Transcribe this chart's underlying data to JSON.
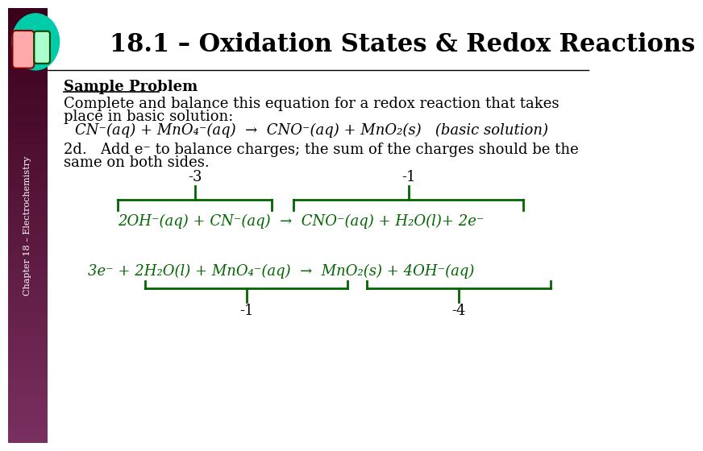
{
  "title": "18.1 – Oxidation States & Redox Reactions",
  "title_fontsize": 22,
  "title_color": "#000000",
  "bg_color": "#ffffff",
  "sidebar_text": "Chapter 18 – Electrochemistry",
  "sidebar_color_top": "#3a001a",
  "sidebar_color_bot": "#7a3060",
  "green_color": "#006600",
  "cyan_bg": "#00ccaa",
  "body_fontsize": 13,
  "sample_problem_text": "Sample Problem",
  "line1": "Complete and balance this equation for a redox reaction that takes",
  "line2": "place in basic solution:",
  "step_line1": "2d.   Add e⁻ to balance charges; the sum of the charges should be the",
  "step_line2": "same on both sides.",
  "label_m3": "-3",
  "label_m1_top": "-1",
  "label_m1_bot": "-1",
  "label_m4": "-4"
}
